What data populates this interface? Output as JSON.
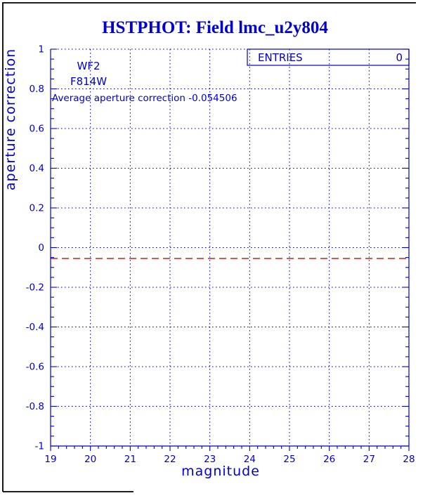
{
  "page": {
    "title": "HSTPHOT: Field lmc_u2y804"
  },
  "chart_data": {
    "type": "line",
    "title": "HSTPHOT: Field lmc_u2y804",
    "xlabel": "magnitude",
    "ylabel": "aperture correction",
    "xlim": [
      19,
      28
    ],
    "ylim": [
      -1,
      1
    ],
    "x_ticks": [
      19,
      20,
      21,
      22,
      23,
      24,
      25,
      26,
      27,
      28
    ],
    "x_tick_labels": [
      "19",
      "20",
      "21",
      "22",
      "23",
      "24",
      "25",
      "26",
      "27",
      "28"
    ],
    "x_minor_step": 0.2,
    "y_ticks": [
      1,
      0.8,
      0.6,
      0.4,
      0.2,
      0,
      -0.2,
      -0.4,
      -0.6,
      -0.8,
      -1
    ],
    "y_tick_labels": [
      "1",
      "0.8",
      "0.6",
      "0.4",
      "0.2",
      "0",
      "-0.2",
      "-0.4",
      "-0.6",
      "-0.8",
      "-1"
    ],
    "y_minor_step": 0.05,
    "grid": true,
    "grid_style": "dotted",
    "grid_lines_x": [
      20,
      21,
      22,
      23,
      24,
      25,
      26,
      27
    ],
    "grid_lines_y": [
      0.8,
      0.6,
      0.4,
      0.2,
      0,
      -0.2,
      -0.4,
      -0.6,
      -0.8
    ],
    "series": [
      {
        "name": "average aperture correction reference line",
        "type": "hline",
        "y": -0.054506,
        "style": "dashed",
        "color": "#dd0000"
      }
    ],
    "annotations": {
      "camera": "WF2",
      "filter": "F814W",
      "average_text": "Average aperture correction -0.054506"
    },
    "entries_box": {
      "label": "ENTRIES",
      "value": "0"
    },
    "legend_position": "top-right",
    "colors": {
      "axis": "#0000cc",
      "title": "#0000cc",
      "reference_line": "#dd0000",
      "page_border": "#000000"
    }
  }
}
